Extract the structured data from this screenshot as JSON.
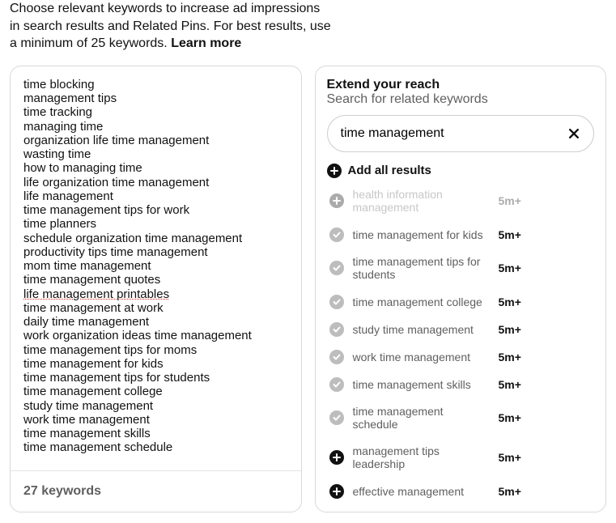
{
  "intro": {
    "text": "Choose relevant keywords to increase ad impressions in search results and Related Pins. For best results, use a minimum of 25 keywords.",
    "learn_more": "Learn more"
  },
  "left": {
    "keywords": [
      "time blocking",
      "management tips",
      "time tracking",
      "managing time",
      "organization life time management",
      "wasting time",
      "how to managing time",
      "life organization time management",
      "life management",
      "time management tips for work",
      "time planners",
      "schedule organization time management",
      "productivity tips time management",
      "mom time management",
      "time management quotes",
      "life management printables",
      "time management at work",
      "daily time management",
      "work organization ideas time management",
      "time management tips for moms",
      "time management for kids",
      "time management tips for students",
      "time management college",
      "study time management",
      "work time management",
      "time management skills",
      "time management schedule"
    ],
    "spellcheck_index": 15,
    "footer": "27 keywords"
  },
  "right": {
    "title": "Extend your reach",
    "subtitle": "Search for related keywords",
    "search_value": "time management",
    "add_all_label": "Add all results",
    "results": [
      {
        "state": "plus",
        "label": "health information management",
        "count": "5m+",
        "faded": true
      },
      {
        "state": "check",
        "label": "time management for kids",
        "count": "5m+"
      },
      {
        "state": "check",
        "label": "time management tips for students",
        "count": "5m+"
      },
      {
        "state": "check",
        "label": "time management college",
        "count": "5m+"
      },
      {
        "state": "check",
        "label": "study time management",
        "count": "5m+"
      },
      {
        "state": "check",
        "label": "work time management",
        "count": "5m+"
      },
      {
        "state": "check",
        "label": "time management skills",
        "count": "5m+"
      },
      {
        "state": "check",
        "label": "time management schedule",
        "count": "5m+"
      },
      {
        "state": "plus",
        "label": "management tips leadership",
        "count": "5m+"
      },
      {
        "state": "plus",
        "label": "effective management",
        "count": "5m+"
      }
    ]
  },
  "colors": {
    "border": "#d9d9d9",
    "muted": "#5f5f5f",
    "plus_bg": "#111111",
    "check_bg": "#bdbdbd"
  }
}
